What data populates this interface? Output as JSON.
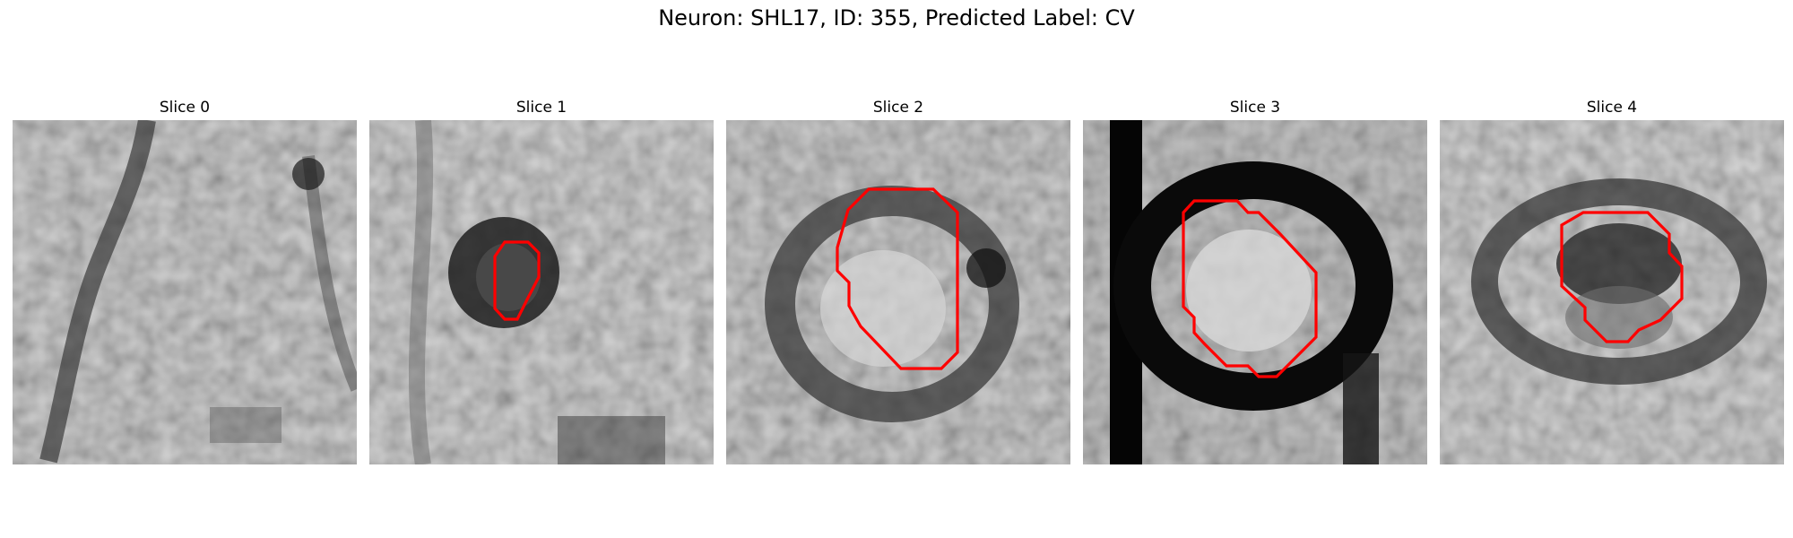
{
  "figure": {
    "title": "Neuron: SHL17, ID: 355, Predicted Label: CV"
  },
  "panels": [
    {
      "title": "Slice 0",
      "has_contour": false,
      "contour_color": "#ff0000"
    },
    {
      "title": "Slice 1",
      "has_contour": true,
      "contour_color": "#ff0000"
    },
    {
      "title": "Slice 2",
      "has_contour": true,
      "contour_color": "#ff0000"
    },
    {
      "title": "Slice 3",
      "has_contour": true,
      "contour_color": "#ff0000"
    },
    {
      "title": "Slice 4",
      "has_contour": true,
      "contour_color": "#ff0000"
    }
  ],
  "colormap": "gray"
}
